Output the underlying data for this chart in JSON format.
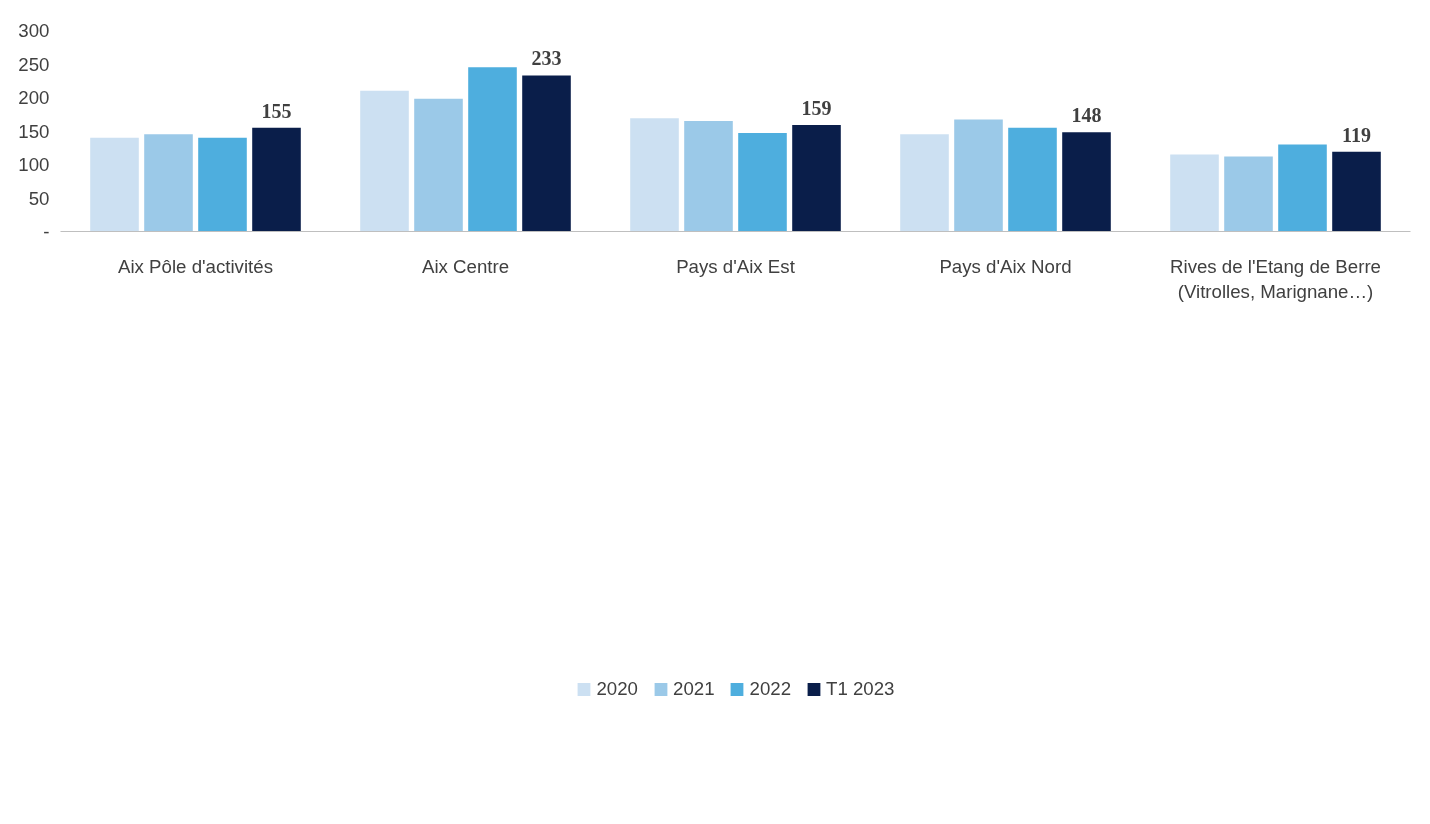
{
  "chart_data": {
    "type": "bar",
    "categories": [
      "Aix Pôle d'activités",
      "Aix Centre",
      "Pays d'Aix Est",
      "Pays d'Aix Nord",
      "Rives de l'Etang de Berre\n(Vitrolles, Marignane…)"
    ],
    "series": [
      {
        "name": "2020",
        "color": "#cce0f2",
        "values": [
          140,
          210,
          169,
          145,
          115
        ]
      },
      {
        "name": "2021",
        "color": "#9bc9e8",
        "values": [
          145,
          198,
          165,
          167,
          112
        ]
      },
      {
        "name": "2022",
        "color": "#4eaede",
        "values": [
          140,
          245,
          147,
          155,
          130
        ]
      },
      {
        "name": "T1 2023",
        "color": "#0a1e4a",
        "values": [
          155,
          233,
          159,
          148,
          119
        ],
        "value_labels": [
          "155",
          "233",
          "159",
          "148",
          "119"
        ]
      }
    ],
    "ylim": [
      0,
      300
    ],
    "yticks": [
      {
        "value": 0,
        "label": "-"
      },
      50,
      100,
      150,
      200,
      250,
      300
    ],
    "grid": false,
    "legend": "bottom"
  }
}
